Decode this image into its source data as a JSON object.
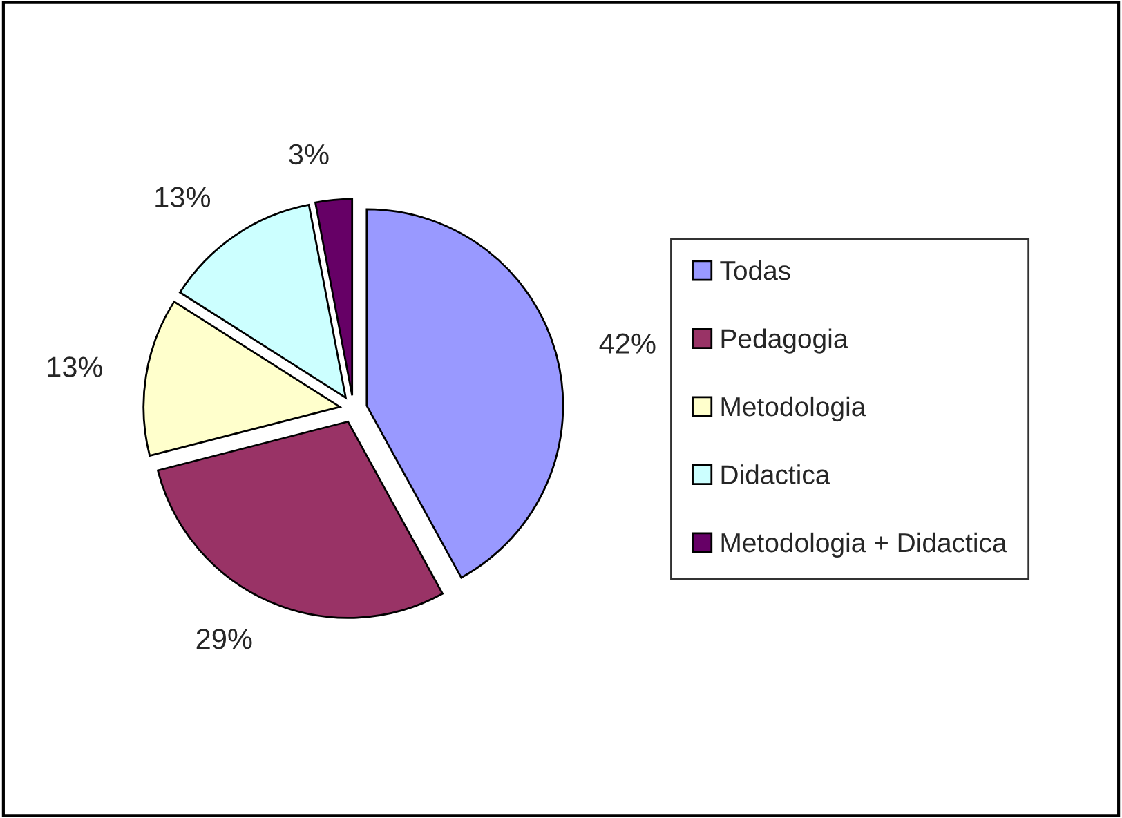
{
  "chart_data": {
    "type": "pie",
    "categories": [
      "Todas",
      "Pedagogia",
      "Metodologia",
      "Didactica",
      "Metodologia + Didactica"
    ],
    "values": [
      42,
      29,
      13,
      13,
      3
    ],
    "value_labels": [
      "42%",
      "29%",
      "13%",
      "13%",
      "3%"
    ],
    "colors": [
      "#9999ff",
      "#993366",
      "#ffffcc",
      "#ccffff",
      "#660066"
    ],
    "legend": "right"
  }
}
